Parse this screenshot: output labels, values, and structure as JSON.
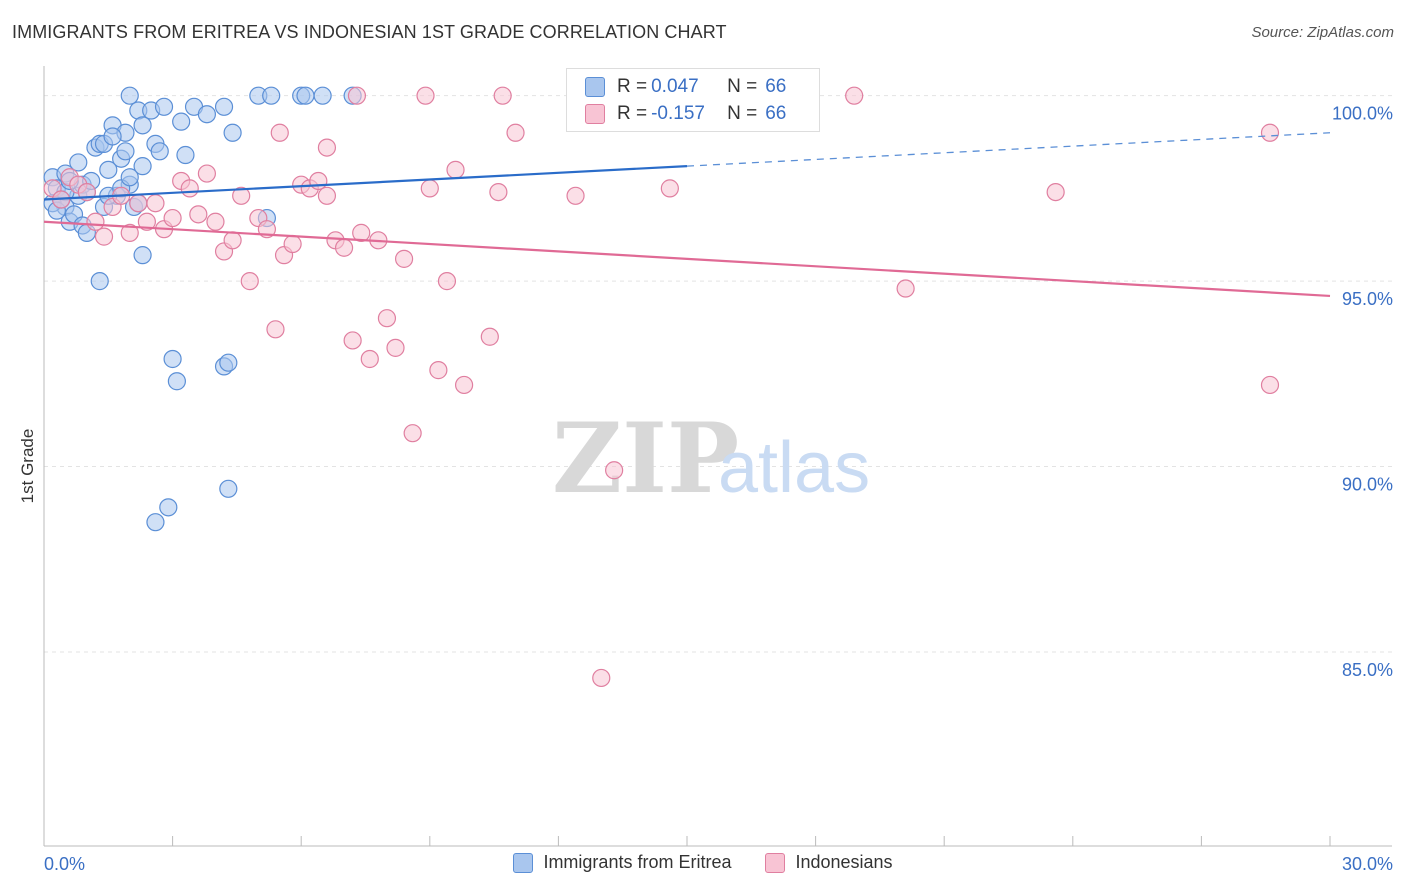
{
  "header": {
    "title": "IMMIGRANTS FROM ERITREA VS INDONESIAN 1ST GRADE CORRELATION CHART",
    "source": "Source: ZipAtlas.com"
  },
  "watermark": {
    "zip": "ZIP",
    "atlas": "atlas"
  },
  "legend": {
    "rows": [
      {
        "r_label": "R =",
        "r_value": "0.047",
        "n_label": "N =",
        "n_value": "66",
        "color": "#a9c6ee",
        "border": "#5b8fd6"
      },
      {
        "r_label": "R =",
        "r_value": "-0.157",
        "n_label": "N =",
        "n_value": "66",
        "color": "#f8c4d4",
        "border": "#e07fa0"
      }
    ]
  },
  "bottom_legend": {
    "items": [
      {
        "label": "Immigrants from Eritrea",
        "color": "#a9c6ee",
        "border": "#5b8fd6"
      },
      {
        "label": "Indonesians",
        "color": "#f8c4d4",
        "border": "#e07fa0"
      }
    ]
  },
  "chart_data": {
    "type": "scatter",
    "title": "IMMIGRANTS FROM ERITREA VS INDONESIAN 1ST GRADE CORRELATION CHART",
    "xlabel": "",
    "ylabel": "1st Grade",
    "xlim": [
      0,
      30
    ],
    "ylim": [
      80.2,
      100.8
    ],
    "x_tick_labels": [
      "0.0%",
      "30.0%"
    ],
    "y_ticks": [
      {
        "value": 100,
        "label": "100.0%"
      },
      {
        "value": 95,
        "label": "95.0%"
      },
      {
        "value": 90,
        "label": "90.0%"
      },
      {
        "value": 85,
        "label": "85.0%"
      }
    ],
    "grid": true,
    "legend_position": "top-center",
    "series": [
      {
        "name": "Immigrants from Eritrea",
        "color": "#5b8fd6",
        "fill": "#a9c6ee",
        "trend": {
          "x0": 0,
          "y0": 97.2,
          "x1": 15,
          "y1": 98.1,
          "x_end": 30,
          "y_end": 99.0,
          "dashed_from": 15
        },
        "points": [
          [
            0.2,
            97.8
          ],
          [
            0.3,
            97.5
          ],
          [
            0.4,
            97.2
          ],
          [
            0.5,
            97.0
          ],
          [
            0.6,
            96.6
          ],
          [
            0.7,
            96.8
          ],
          [
            0.8,
            97.3
          ],
          [
            0.9,
            97.6
          ],
          [
            1.0,
            97.4
          ],
          [
            1.1,
            97.7
          ],
          [
            0.2,
            97.1
          ],
          [
            0.3,
            96.9
          ],
          [
            0.5,
            97.9
          ],
          [
            0.8,
            98.2
          ],
          [
            0.9,
            96.5
          ],
          [
            1.0,
            96.3
          ],
          [
            1.2,
            98.6
          ],
          [
            1.3,
            98.7
          ],
          [
            1.4,
            97.0
          ],
          [
            1.5,
            98.0
          ],
          [
            1.6,
            99.2
          ],
          [
            1.7,
            97.3
          ],
          [
            1.8,
            98.3
          ],
          [
            1.9,
            99.0
          ],
          [
            2.0,
            97.6
          ],
          [
            2.1,
            97.0
          ],
          [
            2.2,
            99.6
          ],
          [
            2.3,
            99.2
          ],
          [
            2.5,
            99.6
          ],
          [
            2.6,
            98.7
          ],
          [
            2.7,
            98.5
          ],
          [
            1.4,
            98.7
          ],
          [
            1.6,
            98.9
          ],
          [
            1.9,
            98.5
          ],
          [
            2.8,
            99.7
          ],
          [
            3.2,
            99.3
          ],
          [
            3.3,
            98.4
          ],
          [
            3.5,
            99.7
          ],
          [
            3.8,
            99.5
          ],
          [
            4.2,
            99.7
          ],
          [
            4.4,
            99.0
          ],
          [
            1.3,
            95.0
          ],
          [
            1.5,
            97.3
          ],
          [
            1.8,
            97.5
          ],
          [
            2.0,
            97.8
          ],
          [
            2.3,
            95.7
          ],
          [
            2.0,
            100.0
          ],
          [
            5.0,
            100.0
          ],
          [
            5.3,
            100.0
          ],
          [
            6.0,
            100.0
          ],
          [
            6.1,
            100.0
          ],
          [
            7.2,
            100.0
          ],
          [
            6.5,
            100.0
          ],
          [
            2.2,
            97.1
          ],
          [
            5.2,
            96.7
          ],
          [
            2.3,
            98.1
          ],
          [
            3.0,
            92.9
          ],
          [
            3.1,
            92.3
          ],
          [
            4.2,
            92.7
          ],
          [
            4.3,
            92.8
          ],
          [
            2.9,
            88.9
          ],
          [
            2.6,
            88.5
          ],
          [
            4.3,
            89.4
          ],
          [
            0.5,
            97.4
          ],
          [
            0.6,
            97.7
          ],
          [
            0.4,
            97.2
          ]
        ]
      },
      {
        "name": "Indonesians",
        "color": "#e07fa0",
        "fill": "#f8c4d4",
        "trend": {
          "x0": 0,
          "y0": 96.6,
          "x1": 30,
          "y1": 94.6
        },
        "points": [
          [
            0.2,
            97.5
          ],
          [
            0.4,
            97.2
          ],
          [
            0.6,
            97.8
          ],
          [
            0.8,
            97.6
          ],
          [
            1.0,
            97.4
          ],
          [
            1.2,
            96.6
          ],
          [
            1.4,
            96.2
          ],
          [
            1.6,
            97.0
          ],
          [
            1.8,
            97.3
          ],
          [
            2.0,
            96.3
          ],
          [
            2.2,
            97.1
          ],
          [
            2.4,
            96.6
          ],
          [
            2.6,
            97.1
          ],
          [
            2.8,
            96.4
          ],
          [
            3.0,
            96.7
          ],
          [
            3.2,
            97.7
          ],
          [
            3.4,
            97.5
          ],
          [
            3.6,
            96.8
          ],
          [
            3.8,
            97.9
          ],
          [
            4.0,
            96.6
          ],
          [
            4.2,
            95.8
          ],
          [
            4.4,
            96.1
          ],
          [
            4.6,
            97.3
          ],
          [
            4.8,
            95.0
          ],
          [
            5.0,
            96.7
          ],
          [
            5.2,
            96.4
          ],
          [
            5.4,
            93.7
          ],
          [
            5.6,
            95.7
          ],
          [
            5.8,
            96.0
          ],
          [
            6.0,
            97.6
          ],
          [
            6.2,
            97.5
          ],
          [
            6.4,
            97.7
          ],
          [
            6.6,
            97.3
          ],
          [
            6.8,
            96.1
          ],
          [
            7.0,
            95.9
          ],
          [
            7.2,
            93.4
          ],
          [
            7.4,
            96.3
          ],
          [
            7.6,
            92.9
          ],
          [
            7.8,
            96.1
          ],
          [
            8.0,
            94.0
          ],
          [
            8.2,
            93.2
          ],
          [
            8.4,
            95.6
          ],
          [
            8.6,
            90.9
          ],
          [
            9.0,
            97.5
          ],
          [
            9.2,
            92.6
          ],
          [
            9.4,
            95.0
          ],
          [
            9.6,
            98.0
          ],
          [
            9.8,
            92.2
          ],
          [
            10.4,
            93.5
          ],
          [
            10.6,
            97.4
          ],
          [
            11.0,
            99.0
          ],
          [
            12.4,
            97.3
          ],
          [
            13.0,
            84.3
          ],
          [
            13.3,
            89.9
          ],
          [
            14.6,
            97.5
          ],
          [
            15.0,
            100.0
          ],
          [
            18.9,
            100.0
          ],
          [
            10.7,
            100.0
          ],
          [
            8.9,
            100.0
          ],
          [
            7.3,
            100.0
          ],
          [
            5.5,
            99.0
          ],
          [
            6.6,
            98.6
          ],
          [
            20.1,
            94.8
          ],
          [
            23.6,
            97.4
          ],
          [
            28.6,
            99.0
          ],
          [
            28.6,
            92.2
          ]
        ]
      }
    ]
  }
}
